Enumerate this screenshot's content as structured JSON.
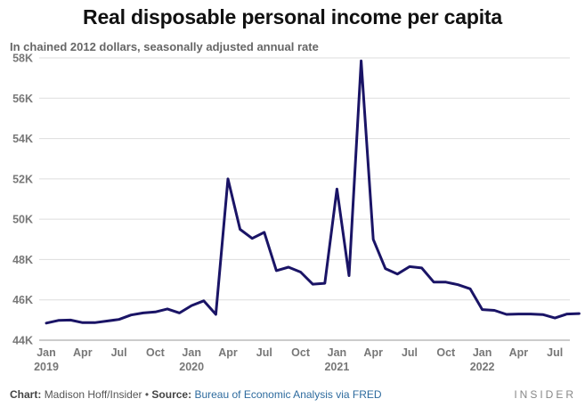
{
  "chart_data": {
    "type": "line",
    "title": "Real disposable personal income per capita",
    "subtitle": "In chained 2012 dollars, seasonally adjusted annual rate",
    "ylim": [
      44000,
      58000
    ],
    "y_ticks": [
      {
        "value": 44000,
        "label": "44K"
      },
      {
        "value": 46000,
        "label": "46K"
      },
      {
        "value": 48000,
        "label": "48K"
      },
      {
        "value": 50000,
        "label": "50K"
      },
      {
        "value": 52000,
        "label": "52K"
      },
      {
        "value": 54000,
        "label": "54K"
      },
      {
        "value": 56000,
        "label": "56K"
      },
      {
        "value": 58000,
        "label": "58K"
      }
    ],
    "x_ticks": [
      {
        "index": 0,
        "label": "Jan",
        "year": "2019"
      },
      {
        "index": 3,
        "label": "Apr",
        "year": ""
      },
      {
        "index": 6,
        "label": "Jul",
        "year": ""
      },
      {
        "index": 9,
        "label": "Oct",
        "year": ""
      },
      {
        "index": 12,
        "label": "Jan",
        "year": "2020"
      },
      {
        "index": 15,
        "label": "Apr",
        "year": ""
      },
      {
        "index": 18,
        "label": "Jul",
        "year": ""
      },
      {
        "index": 21,
        "label": "Oct",
        "year": ""
      },
      {
        "index": 24,
        "label": "Jan",
        "year": "2021"
      },
      {
        "index": 27,
        "label": "Apr",
        "year": ""
      },
      {
        "index": 30,
        "label": "Jul",
        "year": ""
      },
      {
        "index": 33,
        "label": "Oct",
        "year": ""
      },
      {
        "index": 36,
        "label": "Jan",
        "year": "2022"
      },
      {
        "index": 39,
        "label": "Apr",
        "year": ""
      },
      {
        "index": 42,
        "label": "Jul",
        "year": ""
      }
    ],
    "series": [
      {
        "name": "Real disposable personal income per capita",
        "color": "#1a1466",
        "values": [
          44850,
          44980,
          45000,
          44870,
          44870,
          44950,
          45030,
          45250,
          45350,
          45400,
          45550,
          45350,
          45720,
          45950,
          45280,
          52000,
          49500,
          49050,
          49350,
          47450,
          47620,
          47380,
          46780,
          46820,
          51500,
          47200,
          57850,
          49000,
          47550,
          47280,
          47650,
          47580,
          46880,
          46880,
          46750,
          46550,
          45520,
          45480,
          45280,
          45300,
          45300,
          45270,
          45100,
          45300,
          45320
        ]
      }
    ]
  },
  "footer": {
    "chart_label": "Chart:",
    "chart_credit": "Madison Hoff/Insider",
    "bullet": "•",
    "source_label": "Source:",
    "source_text": "Bureau of Economic Analysis via FRED"
  },
  "brand": "INSIDER"
}
